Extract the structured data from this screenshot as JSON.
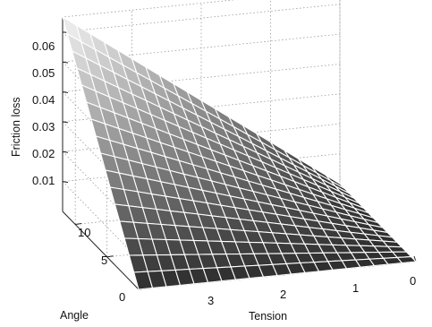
{
  "chart_data": {
    "type": "surface3d",
    "title": "",
    "xlabel": "Tension",
    "ylabel": "Angle",
    "zlabel": "Friction loss",
    "xlim": [
      0,
      4
    ],
    "ylim": [
      0,
      12
    ],
    "zlim": [
      0,
      0.065
    ],
    "x_ticks": [
      0,
      1,
      2,
      3
    ],
    "y_ticks": [
      0,
      5,
      10
    ],
    "z_ticks": [
      0.01,
      0.02,
      0.03,
      0.04,
      0.05,
      0.06
    ],
    "x_tick_labels": [
      "0",
      "1",
      "2",
      "3"
    ],
    "y_tick_labels": [
      "0",
      "5",
      "10"
    ],
    "z_tick_labels": [
      "0.01",
      "0.02",
      "0.03",
      "0.04",
      "0.05",
      "0.06"
    ],
    "grid": true,
    "colormap": "grayscale",
    "surface_corners": [
      {
        "x": 0,
        "y": 0,
        "z": 0.0
      },
      {
        "x": 0,
        "y": 12,
        "z": 0.0
      },
      {
        "x": 4,
        "y": 0,
        "z": 0.0
      },
      {
        "x": 4,
        "y": 12,
        "z": 0.065
      }
    ],
    "x_samples": 20,
    "y_samples": 16
  }
}
